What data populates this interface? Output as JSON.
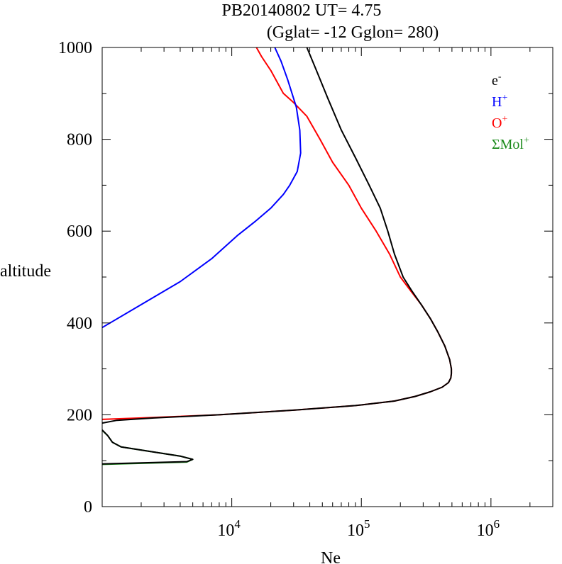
{
  "chart_data": {
    "type": "line",
    "title": "PB20140802   UT=  4.75",
    "subtitle": "(Gglat= -12   Gglon=  280)",
    "xlabel": "Ne",
    "ylabel": "altitude",
    "x_scale": "log",
    "xlim": [
      1000,
      3000000
    ],
    "ylim": [
      0,
      1000
    ],
    "x_ticks": [
      {
        "value": 10000,
        "base": "10",
        "exp": "4"
      },
      {
        "value": 100000,
        "base": "10",
        "exp": "5"
      },
      {
        "value": 1000000,
        "base": "10",
        "exp": "6"
      }
    ],
    "y_ticks": [
      {
        "value": 0,
        "label": "0"
      },
      {
        "value": 200,
        "label": "200"
      },
      {
        "value": 400,
        "label": "400"
      },
      {
        "value": 600,
        "label": "600"
      },
      {
        "value": 800,
        "label": "800"
      },
      {
        "value": 1000,
        "label": "1000"
      }
    ],
    "grid": false,
    "legend_position": "top-right",
    "series": [
      {
        "name": "ΣMol+",
        "legend_base": "ΣMol",
        "legend_sup": "+",
        "color": "#1a8a1a",
        "points": [
          [
            1000,
            92
          ],
          [
            4500,
            97
          ],
          [
            5000,
            103
          ],
          [
            4000,
            110
          ],
          [
            1400,
            130
          ],
          [
            1200,
            140
          ],
          [
            1100,
            155
          ],
          [
            1000,
            166
          ]
        ]
      },
      {
        "name": "O+",
        "legend_base": "O",
        "legend_sup": "+",
        "color": "#ff0000",
        "points": [
          [
            1000,
            190
          ],
          [
            2000,
            193
          ],
          [
            8000,
            200
          ],
          [
            30000,
            210
          ],
          [
            90000,
            220
          ],
          [
            180000,
            230
          ],
          [
            260000,
            240
          ],
          [
            340000,
            250
          ],
          [
            420000,
            260
          ],
          [
            470000,
            270
          ],
          [
            490000,
            280
          ],
          [
            495000,
            290
          ],
          [
            495000,
            300
          ],
          [
            480000,
            320
          ],
          [
            440000,
            350
          ],
          [
            390000,
            380
          ],
          [
            340000,
            410
          ],
          [
            290000,
            440
          ],
          [
            240000,
            470
          ],
          [
            200000,
            500
          ],
          [
            165000,
            550
          ],
          [
            130000,
            600
          ],
          [
            100000,
            650
          ],
          [
            80000,
            700
          ],
          [
            60000,
            750
          ],
          [
            48000,
            800
          ],
          [
            38000,
            850
          ],
          [
            30000,
            880
          ],
          [
            25000,
            900
          ],
          [
            20000,
            950
          ],
          [
            17000,
            980
          ],
          [
            15500,
            1000
          ]
        ]
      },
      {
        "name": "H+",
        "legend_base": "H",
        "legend_sup": "+",
        "color": "#0000ff",
        "points": [
          [
            1000,
            390
          ],
          [
            2000,
            440
          ],
          [
            4000,
            490
          ],
          [
            7000,
            540
          ],
          [
            11000,
            590
          ],
          [
            15000,
            620
          ],
          [
            20000,
            650
          ],
          [
            25000,
            680
          ],
          [
            28000,
            700
          ],
          [
            32000,
            730
          ],
          [
            34000,
            770
          ],
          [
            33500,
            820
          ],
          [
            31500,
            870
          ],
          [
            27000,
            930
          ],
          [
            24000,
            970
          ],
          [
            21500,
            1000
          ]
        ]
      },
      {
        "name": "e-",
        "legend_base": "e",
        "legend_sup": "-",
        "color": "#000000",
        "points": [
          [
            1000,
            93
          ],
          [
            4500,
            98
          ],
          [
            5000,
            103
          ],
          [
            4000,
            110
          ],
          [
            1400,
            130
          ],
          [
            1200,
            140
          ],
          [
            1100,
            155
          ],
          [
            1000,
            167
          ],
          null,
          [
            1000,
            182
          ],
          [
            1300,
            188
          ],
          [
            2500,
            193
          ],
          [
            8000,
            200
          ],
          [
            30000,
            210
          ],
          [
            90000,
            220
          ],
          [
            180000,
            230
          ],
          [
            260000,
            240
          ],
          [
            340000,
            250
          ],
          [
            420000,
            260
          ],
          [
            470000,
            270
          ],
          [
            490000,
            280
          ],
          [
            495000,
            290
          ],
          [
            495000,
            300
          ],
          [
            480000,
            320
          ],
          [
            440000,
            350
          ],
          [
            390000,
            380
          ],
          [
            340000,
            410
          ],
          [
            290000,
            440
          ],
          [
            245000,
            470
          ],
          [
            210000,
            500
          ],
          [
            180000,
            550
          ],
          [
            160000,
            600
          ],
          [
            140000,
            650
          ],
          [
            115000,
            700
          ],
          [
            90000,
            760
          ],
          [
            70000,
            820
          ],
          [
            55000,
            890
          ],
          [
            45000,
            950
          ],
          [
            38000,
            1000
          ]
        ]
      }
    ]
  }
}
